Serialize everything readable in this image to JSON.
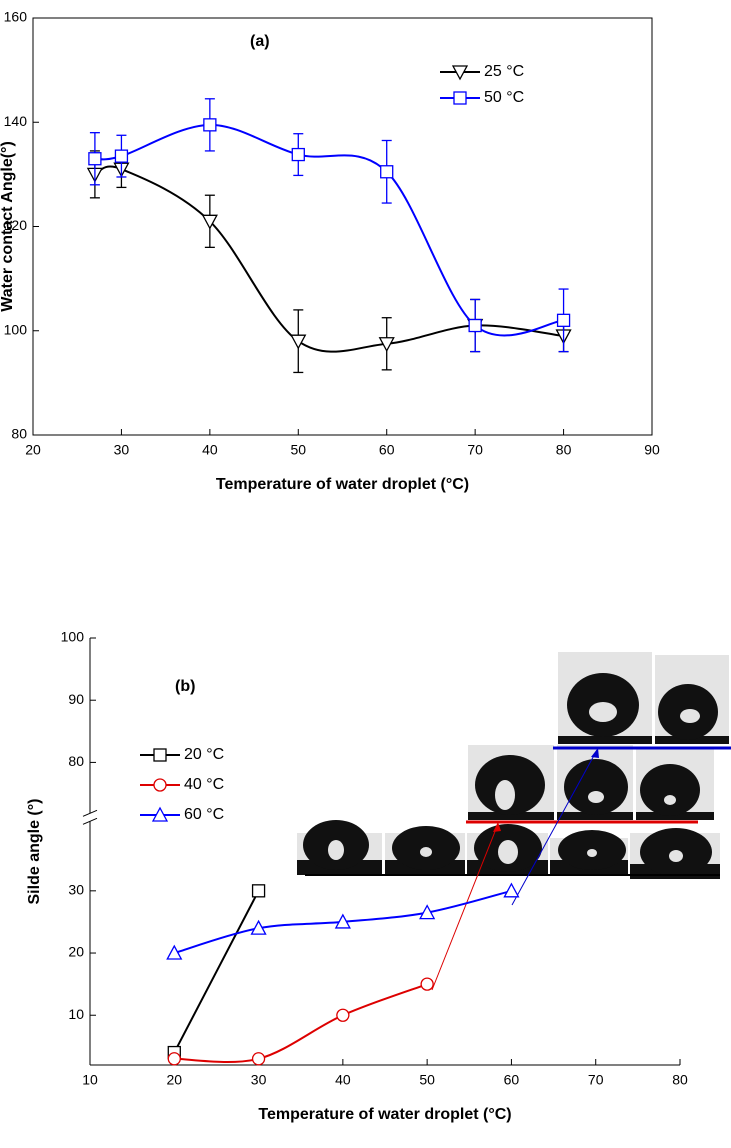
{
  "chart_data": [
    {
      "type": "line",
      "annotation": "(a)",
      "xlabel": "Temperature of water droplet (°C)",
      "ylabel": "Water contact Angle(°)",
      "xlim": [
        20,
        90
      ],
      "xticks": [
        20,
        30,
        40,
        50,
        60,
        70,
        80,
        90
      ],
      "ylim": [
        80,
        160
      ],
      "yticks": [
        80,
        100,
        120,
        140,
        160
      ],
      "x": [
        27,
        30,
        40,
        50,
        60,
        70,
        80
      ],
      "series": [
        {
          "name": "25 °C",
          "color": "#000000",
          "marker": "triangle-down",
          "values": [
            130,
            131,
            121,
            98,
            97.5,
            101,
            99
          ],
          "errors": [
            4.5,
            3.5,
            5,
            6,
            5,
            5,
            3
          ]
        },
        {
          "name": "50 °C",
          "color": "#0000ff",
          "marker": "square",
          "values": [
            133,
            133.5,
            139.5,
            133.8,
            130.5,
            101,
            102
          ],
          "errors": [
            5,
            4,
            5,
            4,
            6,
            5,
            6
          ]
        }
      ],
      "frame": true
    },
    {
      "type": "line",
      "annotation": "(b)",
      "xlabel": "Temperature of water droplet (°C)",
      "ylabel": "Silde angle (°)",
      "xlim": [
        10,
        80
      ],
      "xticks": [
        10,
        20,
        30,
        40,
        50,
        60,
        70,
        80
      ],
      "ylim": [
        2,
        100
      ],
      "ybreak": [
        37,
        76
      ],
      "yticks": [
        10,
        20,
        30,
        80,
        90,
        100
      ],
      "x": [
        20,
        30,
        40,
        50,
        60
      ],
      "series": [
        {
          "name": "20 °C",
          "color": "#000000",
          "marker": "square",
          "values": [
            4,
            30,
            null,
            null,
            null
          ]
        },
        {
          "name": "40 °C",
          "color": "#dd0000",
          "marker": "circle",
          "values": [
            3,
            3,
            10,
            15,
            null
          ]
        },
        {
          "name": "60 °C",
          "color": "#0000ff",
          "marker": "triangle-up",
          "values": [
            20,
            24,
            25,
            26.5,
            30
          ]
        }
      ],
      "frame": false
    }
  ]
}
